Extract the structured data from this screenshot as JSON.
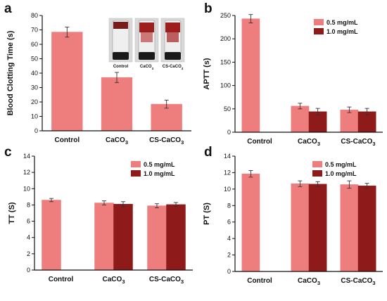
{
  "colors": {
    "light": "#EE7E7E",
    "dark": "#8E1A1A",
    "axis": "#111111"
  },
  "chart_data": [
    {
      "panel": "a",
      "type": "bar",
      "categories": [
        "Control",
        "CaCO3",
        "CS-CaCO3"
      ],
      "ylabel": "Blood Clotting Time (s)",
      "ylim": [
        0,
        80
      ],
      "yticks": [
        0,
        10,
        20,
        30,
        40,
        50,
        60,
        70,
        80
      ],
      "series": [
        {
          "values": [
            68.5,
            37,
            18.5
          ],
          "errors": [
            3.5,
            3.5,
            2.8
          ],
          "color": "light"
        }
      ],
      "inset": {
        "labels": [
          "Control",
          "CaCO3",
          "CS-CaCO3"
        ]
      }
    },
    {
      "panel": "b",
      "type": "bar",
      "categories": [
        "Control",
        "CaCO3",
        "CS-CaCO3"
      ],
      "ylabel": "APTT (s)",
      "ylim": [
        0,
        250
      ],
      "yticks": [
        0,
        50,
        100,
        150,
        200,
        250
      ],
      "series": [
        {
          "name": "0.5 mg/mL",
          "values": [
            243,
            56,
            48
          ],
          "errors": [
            9,
            6,
            6
          ],
          "color": "light"
        },
        {
          "name": "1.0 mg/mL",
          "values": [
            null,
            44,
            44
          ],
          "errors": [
            null,
            7,
            7
          ],
          "color": "dark"
        }
      ]
    },
    {
      "panel": "c",
      "type": "bar",
      "categories": [
        "Control",
        "CaCO3",
        "CS-CaCO3"
      ],
      "ylabel": "TT (S)",
      "ylim": [
        0,
        14
      ],
      "yticks": [
        0,
        2,
        4,
        6,
        8,
        10,
        12,
        14
      ],
      "series": [
        {
          "name": "0.5 mg/mL",
          "values": [
            8.6,
            8.25,
            7.9
          ],
          "errors": [
            0.2,
            0.25,
            0.25
          ],
          "color": "light"
        },
        {
          "name": "1.0 mg/mL",
          "values": [
            null,
            8.1,
            8.05
          ],
          "errors": [
            null,
            0.3,
            0.25
          ],
          "color": "dark"
        }
      ]
    },
    {
      "panel": "d",
      "type": "bar",
      "categories": [
        "Control",
        "CaCO3",
        "CS-CaCO3"
      ],
      "ylabel": "PT (S)",
      "ylim": [
        0,
        14
      ],
      "yticks": [
        0,
        2,
        4,
        6,
        8,
        10,
        12,
        14
      ],
      "series": [
        {
          "name": "0.5 mg/mL",
          "values": [
            11.85,
            10.65,
            10.55
          ],
          "errors": [
            0.4,
            0.35,
            0.45
          ],
          "color": "light"
        },
        {
          "name": "1.0 mg/mL",
          "values": [
            null,
            10.6,
            10.4
          ],
          "errors": [
            null,
            0.3,
            0.3
          ],
          "color": "dark"
        }
      ]
    }
  ]
}
